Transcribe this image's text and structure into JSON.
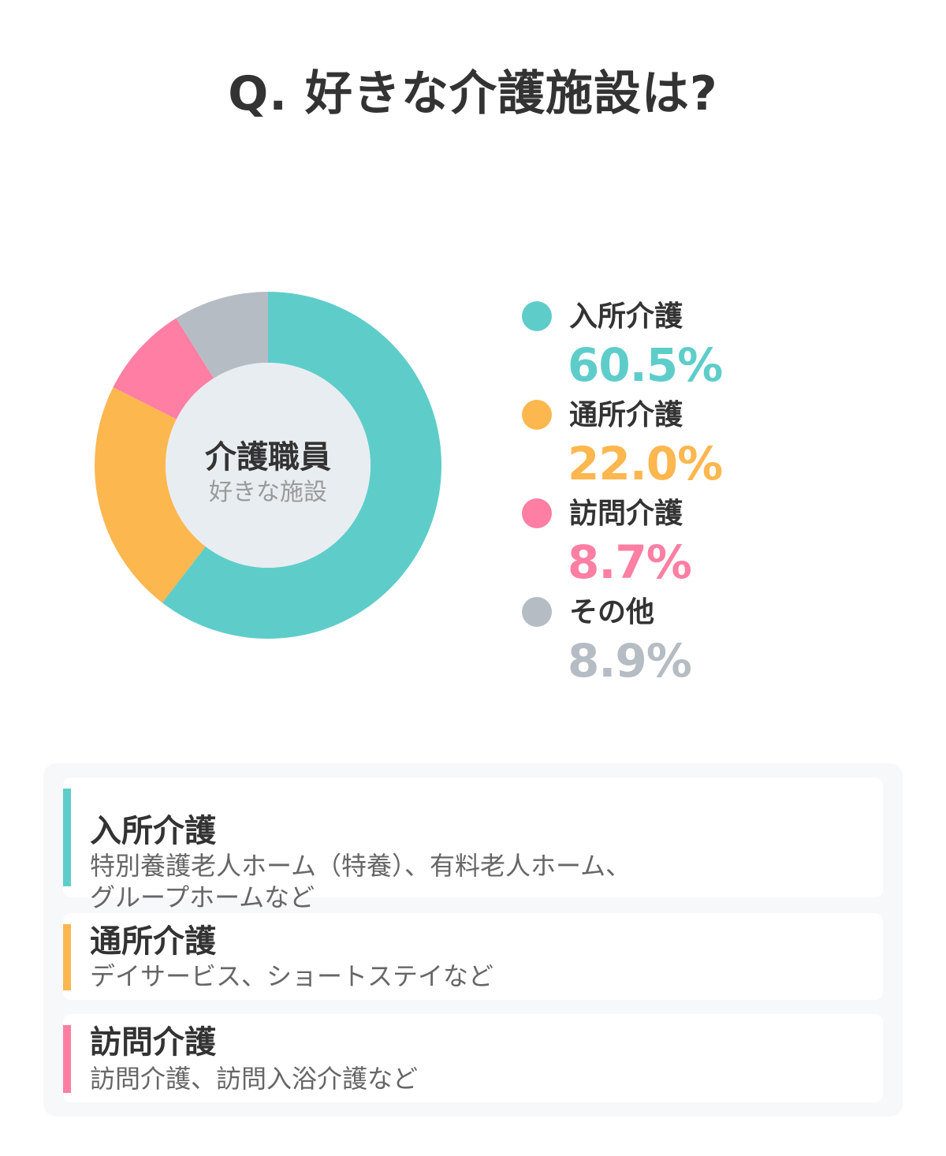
{
  "title": "Q. 好きな介護施設は?",
  "center": {
    "main": "介護職員",
    "sub": "好きな施設"
  },
  "chart_data": {
    "type": "pie",
    "title": "Q. 好きな介護施設は?",
    "categories": [
      "入所介護",
      "通所介護",
      "訪問介護",
      "その他"
    ],
    "values": [
      60.5,
      22.0,
      8.7,
      8.9
    ],
    "value_labels": [
      "60.5%",
      "22.0%",
      "8.7%",
      "8.9%"
    ],
    "colors": [
      "#5ecdca",
      "#fdb74f",
      "#fe7fa3",
      "#b6bcc4"
    ],
    "hole_color": "#e8edf1",
    "legend_position": "right"
  },
  "cards": [
    {
      "title": "入所介護",
      "desc": "特別養護老人ホーム（特養）、有料老人ホーム、\nグループホームなど",
      "color": "#5ecdca"
    },
    {
      "title": "通所介護",
      "desc": "デイサービス、ショートステイなど",
      "color": "#fdb74f"
    },
    {
      "title": "訪問介護",
      "desc": "訪問介護、訪問入浴介護など",
      "color": "#fe7fa3"
    }
  ]
}
